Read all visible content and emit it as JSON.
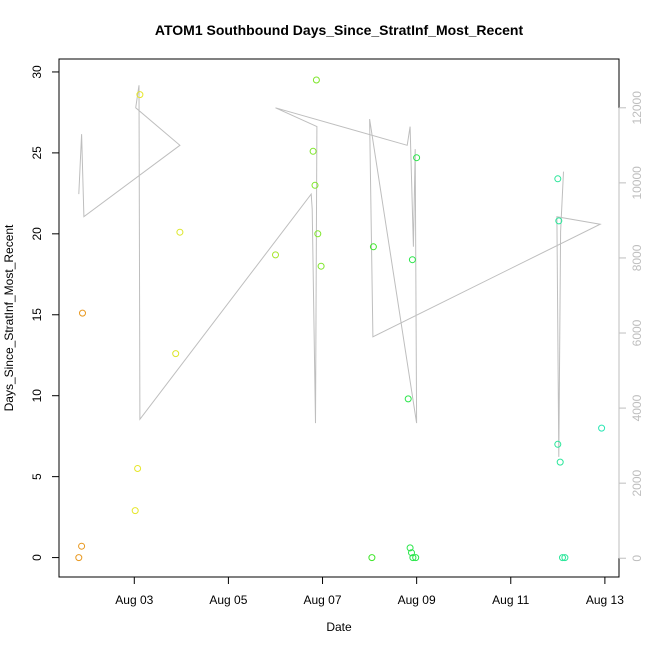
{
  "chart_data": {
    "type": "scatter",
    "title": "ATOM1 Southbound Days_Since_StratInf_Most_Recent",
    "xlabel": "Date",
    "ylabel": "Days_Since_StratInf_Most_Recent",
    "x_ticks": [
      "Aug 03",
      "Aug 05",
      "Aug 07",
      "Aug 09",
      "Aug 11",
      "Aug 13"
    ],
    "x_tick_days": [
      3,
      5,
      7,
      9,
      11,
      13
    ],
    "xlim_days": [
      1.4,
      13.3
    ],
    "ylim": [
      -1.2,
      30.8
    ],
    "y_ticks": [
      0,
      5,
      10,
      15,
      20,
      25,
      30
    ],
    "y2lim": [
      -500,
      13300
    ],
    "y2_ticks": [
      0,
      2000,
      4000,
      6000,
      8000,
      10000,
      12000
    ],
    "y2_color": "#bebebe",
    "grid": false,
    "points": [
      {
        "day": 1.82,
        "value": 0.0,
        "color": "#e8981f"
      },
      {
        "day": 1.88,
        "value": 0.7,
        "color": "#e8981f"
      },
      {
        "day": 1.9,
        "value": 15.1,
        "color": "#e8981f"
      },
      {
        "day": 3.02,
        "value": 2.9,
        "color": "#e6e62a"
      },
      {
        "day": 3.07,
        "value": 5.5,
        "color": "#e6e62a"
      },
      {
        "day": 3.12,
        "value": 28.6,
        "color": "#e6e62a"
      },
      {
        "day": 3.88,
        "value": 12.6,
        "color": "#dce62a"
      },
      {
        "day": 3.97,
        "value": 20.1,
        "color": "#dce62a"
      },
      {
        "day": 6.0,
        "value": 18.7,
        "color": "#a6e62a"
      },
      {
        "day": 6.8,
        "value": 25.1,
        "color": "#7ee62a"
      },
      {
        "day": 6.84,
        "value": 23.0,
        "color": "#7ee62a"
      },
      {
        "day": 6.87,
        "value": 29.5,
        "color": "#7ee62a"
      },
      {
        "day": 6.9,
        "value": 20.0,
        "color": "#7ee62a"
      },
      {
        "day": 6.97,
        "value": 18.0,
        "color": "#7ee62a"
      },
      {
        "day": 8.05,
        "value": 0.0,
        "color": "#3ee62a"
      },
      {
        "day": 8.08,
        "value": 19.2,
        "color": "#3ee62a"
      },
      {
        "day": 8.82,
        "value": 9.8,
        "color": "#2ae64a"
      },
      {
        "day": 8.86,
        "value": 0.6,
        "color": "#2ae64a"
      },
      {
        "day": 8.89,
        "value": 0.3,
        "color": "#2ae64a"
      },
      {
        "day": 8.91,
        "value": 18.4,
        "color": "#2ae64a"
      },
      {
        "day": 8.92,
        "value": 0.0,
        "color": "#2ae64a"
      },
      {
        "day": 8.98,
        "value": 0.0,
        "color": "#2ae64a"
      },
      {
        "day": 9.0,
        "value": 24.7,
        "color": "#2ae64a"
      },
      {
        "day": 12.0,
        "value": 7.0,
        "color": "#2ae69a"
      },
      {
        "day": 12.0,
        "value": 23.4,
        "color": "#2ae69a"
      },
      {
        "day": 12.02,
        "value": 20.8,
        "color": "#2ae69a"
      },
      {
        "day": 12.05,
        "value": 5.9,
        "color": "#2ae69a"
      },
      {
        "day": 12.1,
        "value": 0.0,
        "color": "#2ae69a"
      },
      {
        "day": 12.15,
        "value": 0.0,
        "color": "#2ae69a"
      },
      {
        "day": 12.93,
        "value": 8.0,
        "color": "#2ae6b4"
      }
    ],
    "secondary_line": {
      "color": "#bebebe",
      "points": [
        {
          "day": 1.82,
          "value": 9700
        },
        {
          "day": 1.88,
          "value": 11300
        },
        {
          "day": 1.93,
          "value": 9100
        },
        {
          "day": 3.97,
          "value": 11000
        },
        {
          "day": 3.03,
          "value": 12000
        },
        {
          "day": 3.1,
          "value": 12600
        },
        {
          "day": 3.12,
          "value": 3700
        },
        {
          "day": 6.76,
          "value": 9700
        },
        {
          "day": 6.78,
          "value": 9300
        },
        {
          "day": 6.85,
          "value": 3600
        },
        {
          "day": 6.88,
          "value": 11500
        },
        {
          "day": 6.0,
          "value": 12000
        },
        {
          "day": 8.8,
          "value": 11000
        },
        {
          "day": 8.86,
          "value": 11500
        },
        {
          "day": 8.93,
          "value": 8300
        },
        {
          "day": 8.97,
          "value": 10900
        },
        {
          "day": 9.0,
          "value": 3600
        },
        {
          "day": 8.0,
          "value": 11700
        },
        {
          "day": 8.07,
          "value": 5900
        },
        {
          "day": 12.9,
          "value": 8900
        },
        {
          "day": 11.98,
          "value": 9100
        },
        {
          "day": 12.02,
          "value": 2700
        },
        {
          "day": 12.06,
          "value": 8700
        },
        {
          "day": 12.12,
          "value": 10300
        }
      ]
    }
  }
}
